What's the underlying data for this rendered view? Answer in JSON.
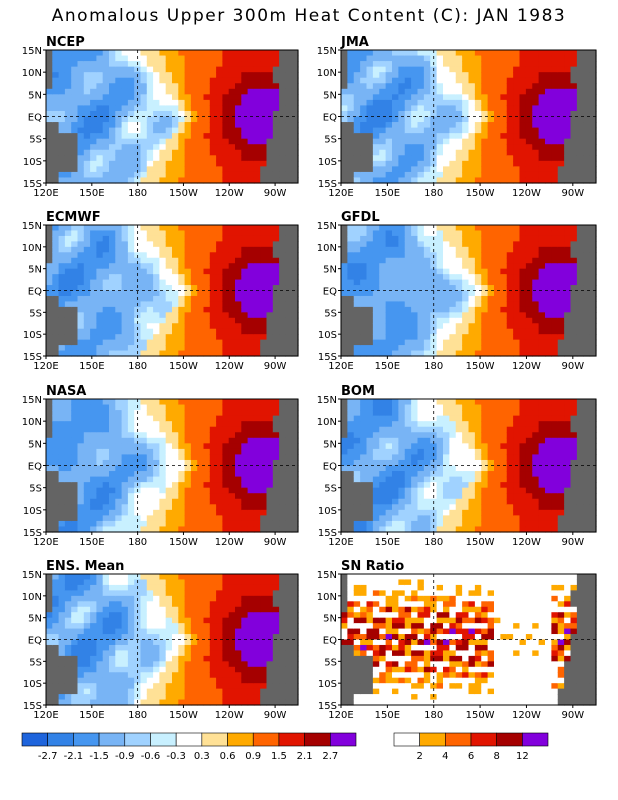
{
  "title": "Anomalous Upper 300m Heat Content (C): JAN 1983",
  "chart_data": [
    {
      "type": "heatmap",
      "title": "NCEP",
      "x_ticks": [
        "120E",
        "150E",
        "180",
        "150W",
        "120W",
        "90W"
      ],
      "y_ticks": [
        "15N",
        "10N",
        "5N",
        "EQ",
        "5S",
        "10S",
        "15S"
      ]
    },
    {
      "type": "heatmap",
      "title": "JMA",
      "x_ticks": [
        "120E",
        "150E",
        "180",
        "150W",
        "120W",
        "90W"
      ],
      "y_ticks": [
        "15N",
        "10N",
        "5N",
        "EQ",
        "5S",
        "10S",
        "15S"
      ]
    },
    {
      "type": "heatmap",
      "title": "ECMWF",
      "x_ticks": [
        "120E",
        "150E",
        "180",
        "150W",
        "120W",
        "90W"
      ],
      "y_ticks": [
        "15N",
        "10N",
        "5N",
        "EQ",
        "5S",
        "10S",
        "15S"
      ]
    },
    {
      "type": "heatmap",
      "title": "GFDL",
      "x_ticks": [
        "120E",
        "150E",
        "180",
        "150W",
        "120W",
        "90W"
      ],
      "y_ticks": [
        "15N",
        "10N",
        "5N",
        "EQ",
        "5S",
        "10S",
        "15S"
      ]
    },
    {
      "type": "heatmap",
      "title": "NASA",
      "x_ticks": [
        "120E",
        "150E",
        "180",
        "150W",
        "120W",
        "90W"
      ],
      "y_ticks": [
        "15N",
        "10N",
        "5N",
        "EQ",
        "5S",
        "10S",
        "15S"
      ]
    },
    {
      "type": "heatmap",
      "title": "BOM",
      "x_ticks": [
        "120E",
        "150E",
        "180",
        "150W",
        "120W",
        "90W"
      ],
      "y_ticks": [
        "15N",
        "10N",
        "5N",
        "EQ",
        "5S",
        "10S",
        "15S"
      ]
    },
    {
      "type": "heatmap",
      "title": "ENS. Mean",
      "x_ticks": [
        "120E",
        "150E",
        "180",
        "150W",
        "120W",
        "90W"
      ],
      "y_ticks": [
        "15N",
        "10N",
        "5N",
        "EQ",
        "5S",
        "10S",
        "15S"
      ]
    },
    {
      "type": "heatmap",
      "title": "SN Ratio",
      "x_ticks": [
        "120E",
        "150E",
        "180",
        "150W",
        "120W",
        "90W"
      ],
      "y_ticks": [
        "15N",
        "10N",
        "5N",
        "EQ",
        "5S",
        "10S",
        "15S"
      ]
    }
  ],
  "legend_anomaly": {
    "labels": [
      "-2.7",
      "-2.1",
      "-1.5",
      "-0.9",
      "-0.6",
      "-0.3",
      "0.3",
      "0.6",
      "0.9",
      "1.5",
      "2.1",
      "2.7"
    ],
    "colors": [
      "#1e64dc",
      "#3282e6",
      "#4696f0",
      "#78b4f5",
      "#a0d2ff",
      "#c8f0ff",
      "#ffffff",
      "#ffe196",
      "#ffaa00",
      "#ff6400",
      "#e11400",
      "#a50000",
      "#8200dc"
    ]
  },
  "legend_snr": {
    "labels": [
      "2",
      "4",
      "6",
      "8",
      "12"
    ],
    "colors": [
      "#ffffff",
      "#ffaa00",
      "#ff6400",
      "#e11400",
      "#a50000",
      "#8200dc"
    ]
  },
  "colors": {
    "land": "#646464",
    "warm_core": "#8200dc"
  }
}
